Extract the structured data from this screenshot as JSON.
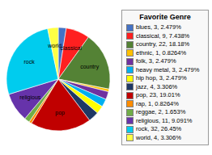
{
  "chart_data": {
    "type": "pie",
    "title": "Favorite Genre",
    "categories": [
      "blues, 3, 2.479%",
      "classical, 9, 7.438%",
      "country, 22, 18.18%",
      "ethnic, 1, 0.8264%",
      "folk, 3, 2.479%",
      "heavy metal, 3, 2.479%",
      "hip hop, 3, 2.479%",
      "jazz, 4, 3.306%",
      "pop, 23, 19.01%",
      "rap, 1, 0.8264%",
      "reggae, 2, 1.653%",
      "religious, 11, 9.091%",
      "rock, 32, 26.45%",
      "world, 4, 3.306%"
    ],
    "values": [
      3,
      9,
      22,
      1,
      3,
      3,
      3,
      4,
      23,
      1,
      2,
      11,
      32,
      4
    ],
    "colors": [
      "#4472c4",
      "#ff2020",
      "#548235",
      "#ffc000",
      "#7030a0",
      "#00b0f0",
      "#ffff00",
      "#1f3864",
      "#c00000",
      "#ff8c00",
      "#70ad47",
      "#6633aa",
      "#00ccee",
      "#ffff44"
    ],
    "annotations": [
      null,
      "classical",
      "country",
      null,
      null,
      null,
      null,
      null,
      "pop",
      null,
      null,
      "religious",
      "rock",
      "world"
    ],
    "legend": "right"
  }
}
